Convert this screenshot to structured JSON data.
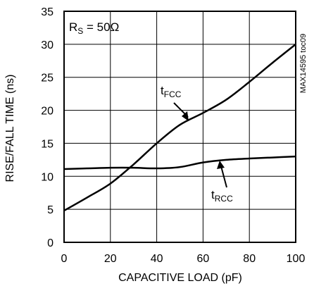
{
  "chart_data": {
    "type": "line",
    "xlabel": "CAPACITIVE LOAD (pF)",
    "ylabel": "RISE/FALL TIME (ns)",
    "xlim": [
      0,
      100
    ],
    "ylim": [
      0,
      35
    ],
    "xticks": [
      0,
      20,
      40,
      60,
      80,
      100
    ],
    "yticks": [
      0,
      5,
      10,
      15,
      20,
      25,
      30,
      35
    ],
    "grid": true,
    "annotation": {
      "prefix": "R",
      "sub": "S",
      "suffix": " = 50Ω"
    },
    "figure_id": "MAX14595 toc09",
    "series": [
      {
        "label_main": "t",
        "label_sub": "FCC",
        "x": [
          0,
          10,
          20,
          30,
          40,
          50,
          60,
          70,
          80,
          90,
          100
        ],
        "y": [
          4.8,
          6.8,
          8.9,
          11.8,
          15.0,
          17.8,
          19.6,
          21.6,
          24.3,
          27.2,
          30.0
        ]
      },
      {
        "label_main": "t",
        "label_sub": "RCC",
        "x": [
          0,
          10,
          20,
          30,
          40,
          50,
          60,
          70,
          80,
          90,
          100
        ],
        "y": [
          11.1,
          11.2,
          11.3,
          11.3,
          11.2,
          11.4,
          12.1,
          12.5,
          12.7,
          12.85,
          13.0
        ]
      }
    ]
  }
}
